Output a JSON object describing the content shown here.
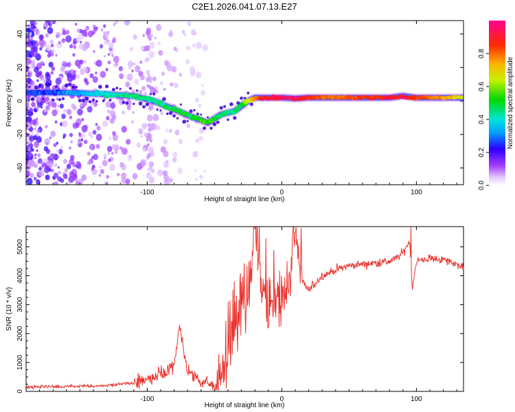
{
  "title": "C2E1.2026.041.07.13.E27",
  "chart_data": [
    {
      "type": "heatmap",
      "name": "spectrogram",
      "xlabel": "Height of straight line (km)",
      "ylabel": "Frequency (Hz)",
      "xlim": [
        -190,
        135
      ],
      "ylim": [
        -50,
        48
      ],
      "xticks": [
        -100,
        0,
        100
      ],
      "xtick_labels": [
        "-100",
        "0",
        "100"
      ],
      "yticks": [
        -40,
        -20,
        0,
        20,
        40
      ],
      "ytick_labels": [
        "-40",
        "-20",
        "0",
        "20",
        "40"
      ],
      "ridge_x": [
        -190,
        -160,
        -130,
        -110,
        -95,
        -80,
        -65,
        -55,
        -45,
        -35,
        -30,
        -25,
        -20,
        -10,
        0,
        10,
        20,
        40,
        60,
        80,
        90,
        100,
        120,
        135
      ],
      "ridge_y": [
        5,
        5,
        4,
        3,
        0,
        -5,
        -10,
        -13,
        -8,
        -6,
        -3,
        0,
        2,
        2,
        2,
        1.5,
        2,
        2,
        2,
        2,
        3,
        2,
        2,
        2
      ],
      "ridge_amplitude": [
        0.25,
        0.3,
        0.4,
        0.45,
        0.45,
        0.5,
        0.5,
        0.55,
        0.45,
        0.45,
        0.5,
        0.65,
        0.8,
        0.9,
        0.95,
        0.95,
        0.85,
        0.8,
        0.85,
        0.9,
        0.9,
        0.85,
        0.75,
        0.7
      ],
      "noise_extent_km": [
        -190,
        -55
      ],
      "colorbar": {
        "label": "Normalized spectral amplitude",
        "range": [
          0,
          1
        ],
        "ticks": [
          0.0,
          0.2,
          0.4,
          0.6,
          0.8
        ],
        "tick_labels": [
          "0.0",
          "0.2",
          "0.4",
          "0.6",
          "0.8"
        ],
        "colormap": "rainbow (white-violet-blue-cyan-green-yellow-orange-red-magenta)"
      }
    },
    {
      "type": "line",
      "name": "snr",
      "xlabel": "Height of straight line (km)",
      "ylabel": "SNR (10 * v/v)",
      "xlim": [
        -190,
        135
      ],
      "ylim": [
        0,
        5700
      ],
      "xticks": [
        -100,
        0,
        100
      ],
      "xtick_labels": [
        "-100",
        "0",
        "100"
      ],
      "yticks": [
        0,
        1000,
        2000,
        3000,
        4000,
        5000
      ],
      "ytick_labels": [
        "0",
        "1000",
        "2000",
        "3000",
        "4000",
        "5000"
      ],
      "line_color": "#e8322c",
      "series": [
        {
          "name": "SNR",
          "x": [
            -190,
            -170,
            -150,
            -130,
            -110,
            -100,
            -90,
            -80,
            -76,
            -70,
            -60,
            -50,
            -45,
            -40,
            -35,
            -30,
            -25,
            -20,
            -15,
            -10,
            -5,
            0,
            5,
            10,
            15,
            20,
            30,
            40,
            50,
            60,
            70,
            80,
            85,
            90,
            95,
            97,
            100,
            110,
            120,
            130,
            135
          ],
          "y": [
            150,
            160,
            170,
            200,
            300,
            400,
            600,
            800,
            2300,
            700,
            300,
            200,
            500,
            1600,
            2400,
            2800,
            3200,
            5600,
            4000,
            3000,
            3500,
            3200,
            3600,
            5500,
            3800,
            3500,
            4000,
            4200,
            4350,
            4400,
            4450,
            4500,
            4600,
            4800,
            5200,
            3600,
            4500,
            4600,
            4550,
            4400,
            4300
          ],
          "spikes": [
            [
              -76,
              2300
            ],
            [
              -20,
              5600
            ],
            [
              -12,
              5300
            ],
            [
              10,
              5500
            ],
            [
              96,
              5700
            ]
          ]
        }
      ]
    }
  ]
}
